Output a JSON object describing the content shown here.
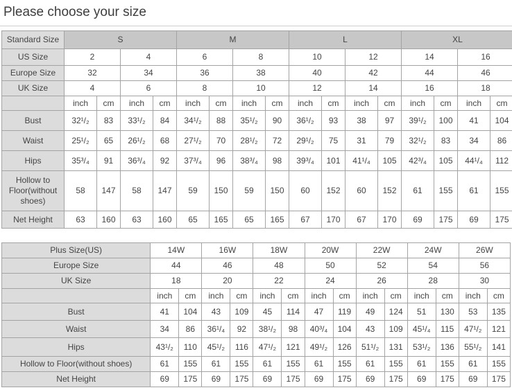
{
  "page": {
    "title": "Please choose your size"
  },
  "standard_table": {
    "corner_label": "Standard Size",
    "size_groups": [
      "S",
      "M",
      "L",
      "XL"
    ],
    "size_rows": [
      {
        "label": "US Size",
        "values": [
          "2",
          "4",
          "6",
          "8",
          "10",
          "12",
          "14",
          "16"
        ]
      },
      {
        "label": "Europe Size",
        "values": [
          "32",
          "34",
          "36",
          "38",
          "40",
          "42",
          "44",
          "46"
        ]
      },
      {
        "label": "UK Size",
        "values": [
          "4",
          "6",
          "8",
          "10",
          "12",
          "14",
          "16",
          "18"
        ]
      }
    ],
    "units": [
      "inch",
      "cm"
    ],
    "measure_rows": [
      {
        "label": "Bust",
        "values": [
          "32¹/₂",
          "83",
          "33¹/₂",
          "84",
          "34¹/₂",
          "88",
          "35¹/₂",
          "90",
          "36¹/₂",
          "93",
          "38",
          "97",
          "39¹/₂",
          "100",
          "41",
          "104"
        ]
      },
      {
        "label": "Waist",
        "values": [
          "25¹/₂",
          "65",
          "26¹/₂",
          "68",
          "27¹/₂",
          "70",
          "28¹/₂",
          "72",
          "29¹/₂",
          "75",
          "31",
          "79",
          "32¹/₂",
          "83",
          "34",
          "86"
        ]
      },
      {
        "label": "Hips",
        "values": [
          "35³/₄",
          "91",
          "36³/₄",
          "92",
          "37³/₄",
          "96",
          "38³/₄",
          "98",
          "39³/₄",
          "101",
          "41¹/₄",
          "105",
          "42³/₄",
          "105",
          "44¹/₄",
          "112"
        ]
      },
      {
        "label": "Hollow to Floor(without shoes)",
        "values": [
          "58",
          "147",
          "58",
          "147",
          "59",
          "150",
          "59",
          "150",
          "60",
          "152",
          "60",
          "152",
          "61",
          "155",
          "61",
          "155"
        ]
      },
      {
        "label": "Net Height",
        "values": [
          "63",
          "160",
          "63",
          "160",
          "65",
          "165",
          "65",
          "165",
          "67",
          "170",
          "67",
          "170",
          "69",
          "175",
          "69",
          "175"
        ]
      }
    ]
  },
  "plus_table": {
    "size_rows": [
      {
        "label": "Plus Size(US)",
        "values": [
          "14W",
          "16W",
          "18W",
          "20W",
          "22W",
          "24W",
          "26W"
        ]
      },
      {
        "label": "Europe Size",
        "values": [
          "44",
          "46",
          "48",
          "50",
          "52",
          "54",
          "56"
        ]
      },
      {
        "label": "UK Size",
        "values": [
          "18",
          "20",
          "22",
          "24",
          "26",
          "28",
          "30"
        ]
      }
    ],
    "units": [
      "inch",
      "cm"
    ],
    "measure_rows": [
      {
        "label": "Bust",
        "values": [
          "41",
          "104",
          "43",
          "109",
          "45",
          "114",
          "47",
          "119",
          "49",
          "124",
          "51",
          "130",
          "53",
          "135"
        ]
      },
      {
        "label": "Waist",
        "values": [
          "34",
          "86",
          "36¹/₄",
          "92",
          "38¹/₂",
          "98",
          "40³/₄",
          "104",
          "43",
          "109",
          "45¹/₄",
          "115",
          "47¹/₂",
          "121"
        ]
      },
      {
        "label": "Hips",
        "values": [
          "43¹/₂",
          "110",
          "45¹/₂",
          "116",
          "47¹/₂",
          "121",
          "49¹/₂",
          "126",
          "51¹/₂",
          "131",
          "53¹/₂",
          "136",
          "55¹/₂",
          "141"
        ]
      },
      {
        "label": "Hollow to Floor(without shoes)",
        "values": [
          "61",
          "155",
          "61",
          "155",
          "61",
          "155",
          "61",
          "155",
          "61",
          "155",
          "61",
          "155",
          "61",
          "155"
        ]
      },
      {
        "label": "Net Height",
        "values": [
          "69",
          "175",
          "69",
          "175",
          "69",
          "175",
          "69",
          "175",
          "69",
          "175",
          "69",
          "175",
          "69",
          "175"
        ]
      }
    ]
  }
}
